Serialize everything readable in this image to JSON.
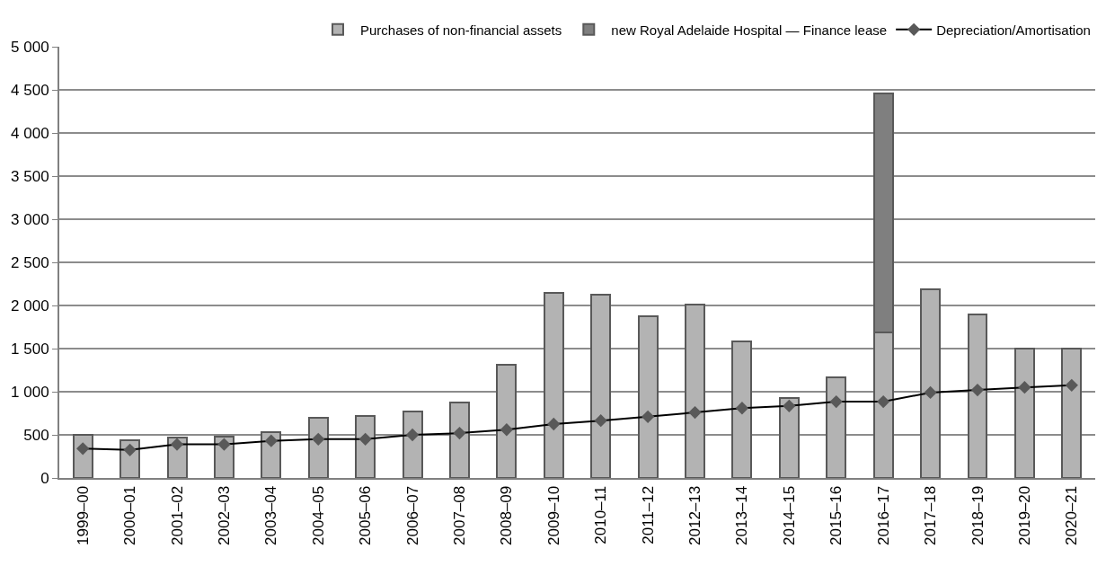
{
  "chart_data": {
    "type": "bar",
    "stacked": true,
    "categories": [
      "1999–00",
      "2000–01",
      "2001–02",
      "2002–03",
      "2003–04",
      "2004–05",
      "2005–06",
      "2006–07",
      "2007–08",
      "2008–09",
      "2009–10",
      "2010–11",
      "2011–12",
      "2012–13",
      "2013–14",
      "2014–15",
      "2015–16",
      "2016–17",
      "2017–18",
      "2018–19",
      "2019–20",
      "2020–21"
    ],
    "series": [
      {
        "name": "Purchases of non-financial assets",
        "color": "#b3b3b3",
        "values": [
          500,
          440,
          470,
          480,
          530,
          700,
          720,
          770,
          875,
          1310,
          2150,
          2125,
          1875,
          2010,
          1580,
          930,
          1165,
          1690,
          2190,
          1900,
          1500,
          1500
        ]
      },
      {
        "name": "new Royal Adelaide Hospital — Finance lease",
        "color": "#7f7f7f",
        "values": [
          null,
          null,
          null,
          null,
          null,
          null,
          null,
          null,
          null,
          null,
          null,
          null,
          null,
          null,
          null,
          null,
          null,
          2770,
          null,
          null,
          null,
          null
        ]
      },
      {
        "name": "Depreciation/Amortisation",
        "type": "line",
        "color": "#000000",
        "marker": "diamond",
        "values": [
          340,
          325,
          390,
          390,
          430,
          450,
          450,
          500,
          520,
          560,
          625,
          665,
          710,
          760,
          810,
          835,
          885,
          885,
          990,
          1020,
          1050,
          1075
        ]
      }
    ],
    "ylim": [
      0,
      5000
    ],
    "yticks": [
      {
        "value": 0,
        "label": "0"
      },
      {
        "value": 500,
        "label": "500"
      },
      {
        "value": 1000,
        "label": "1 000"
      },
      {
        "value": 1500,
        "label": "1 500"
      },
      {
        "value": 2000,
        "label": "2 000"
      },
      {
        "value": 2500,
        "label": "2 500"
      },
      {
        "value": 3000,
        "label": "3 000"
      },
      {
        "value": 3500,
        "label": "3 500"
      },
      {
        "value": 4000,
        "label": "4 000"
      },
      {
        "value": 4500,
        "label": "4 500"
      },
      {
        "value": 5000,
        "label": "5 000"
      }
    ],
    "grid": "y",
    "legend": "top"
  }
}
